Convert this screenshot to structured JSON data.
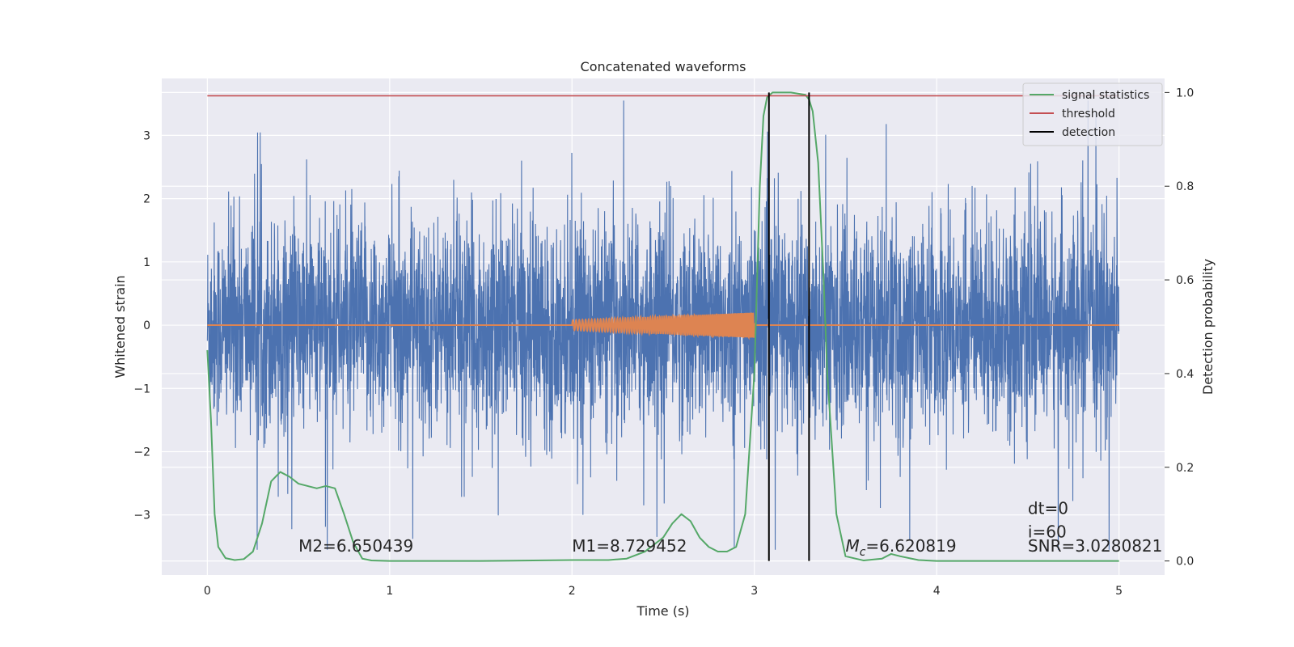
{
  "chart_data": {
    "type": "line",
    "title": "Concatenated waveforms",
    "xlabel": "Time (s)",
    "ylabel": "Whitened strain",
    "y2label": "Detection probability",
    "xlim": [
      -0.25,
      5.25
    ],
    "ylim": [
      -3.95,
      3.9
    ],
    "y2lim": [
      -0.03,
      1.03
    ],
    "xticks": [
      0,
      1,
      2,
      3,
      4,
      5
    ],
    "yticks": [
      -3,
      -2,
      -1,
      0,
      1,
      2,
      3
    ],
    "y2ticks": [
      0.0,
      0.2,
      0.4,
      0.6,
      0.8,
      1.0
    ],
    "grid": true,
    "legend_position": "top-right",
    "series": [
      {
        "key": "strain",
        "color": "#4c72b0",
        "kind": "noise",
        "x_range": [
          0,
          5
        ],
        "amplitude_typical": 0.8,
        "amplitude_peak": 3.55,
        "axis": "left"
      },
      {
        "key": "template",
        "color": "#dd8452",
        "kind": "chirp",
        "x_range": [
          0,
          5
        ],
        "chirp_start": 2.0,
        "chirp_end": 3.0,
        "chirp_amp_start": 0.08,
        "chirp_amp_end": 0.2,
        "axis": "left"
      },
      {
        "name": "signal statistics",
        "color": "#55a868",
        "axis": "right",
        "x": [
          0.0,
          0.02,
          0.04,
          0.06,
          0.1,
          0.15,
          0.2,
          0.25,
          0.3,
          0.35,
          0.4,
          0.45,
          0.5,
          0.55,
          0.6,
          0.65,
          0.7,
          0.75,
          0.8,
          0.85,
          0.9,
          1.0,
          1.5,
          2.0,
          2.2,
          2.3,
          2.4,
          2.5,
          2.55,
          2.6,
          2.65,
          2.7,
          2.75,
          2.8,
          2.85,
          2.9,
          2.95,
          3.0,
          3.03,
          3.05,
          3.07,
          3.1,
          3.2,
          3.28,
          3.3,
          3.32,
          3.35,
          3.38,
          3.4,
          3.45,
          3.5,
          3.6,
          3.7,
          3.75,
          3.8,
          3.9,
          4.0,
          4.5,
          5.0
        ],
        "y": [
          0.45,
          0.3,
          0.1,
          0.03,
          0.006,
          0.002,
          0.004,
          0.02,
          0.08,
          0.17,
          0.19,
          0.18,
          0.165,
          0.16,
          0.155,
          0.16,
          0.155,
          0.1,
          0.04,
          0.005,
          0.001,
          0.0,
          0.0,
          0.002,
          0.002,
          0.005,
          0.02,
          0.05,
          0.08,
          0.1,
          0.085,
          0.05,
          0.03,
          0.02,
          0.02,
          0.03,
          0.1,
          0.4,
          0.8,
          0.95,
          0.99,
          1.0,
          1.0,
          0.995,
          0.985,
          0.96,
          0.85,
          0.6,
          0.4,
          0.1,
          0.01,
          0.001,
          0.005,
          0.015,
          0.01,
          0.002,
          0.0,
          0.0,
          0.0
        ]
      },
      {
        "name": "threshold",
        "color": "#c44e52",
        "axis": "right",
        "x": [
          0,
          5
        ],
        "y": [
          0.993,
          0.993
        ]
      },
      {
        "name": "detection",
        "color": "#000000",
        "axis": "right",
        "x": [
          3.08,
          3.3
        ],
        "y_range": [
          0.0,
          1.0
        ]
      }
    ],
    "annotations": [
      {
        "text": "M2=6.650439",
        "x": 0.5,
        "y": 0.02
      },
      {
        "text": "M1=8.729452",
        "x": 2.0,
        "y": 0.02
      },
      {
        "text_prefix": "M",
        "text_sub": "c",
        "text_suffix": "=6.620819",
        "x": 3.5,
        "y": 0.02
      },
      {
        "text": "dt=0",
        "x": 4.5,
        "y": 0.1
      },
      {
        "text": "i=60",
        "x": 4.5,
        "y": 0.05
      },
      {
        "text": "SNR=3.0280821",
        "x": 4.5,
        "y": 0.02
      }
    ]
  }
}
